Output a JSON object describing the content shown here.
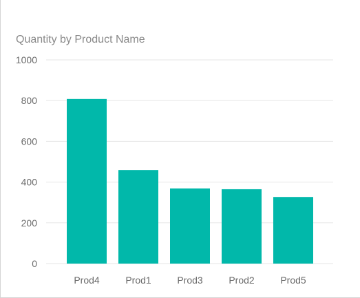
{
  "chart_data": {
    "type": "bar",
    "title": "Quantity by Product Name",
    "categories": [
      "Prod4",
      "Prod1",
      "Prod3",
      "Prod2",
      "Prod5"
    ],
    "values": [
      808,
      459,
      369,
      365,
      327
    ],
    "ylim": [
      0,
      1000
    ],
    "yticks": [
      0,
      200,
      400,
      600,
      800,
      1000
    ],
    "grid": true,
    "colors": {
      "bar": "#01B8AA",
      "grid": "#E6E6E6",
      "tick_text": "#6A6A6A",
      "title_text": "#8A8A8A"
    }
  }
}
